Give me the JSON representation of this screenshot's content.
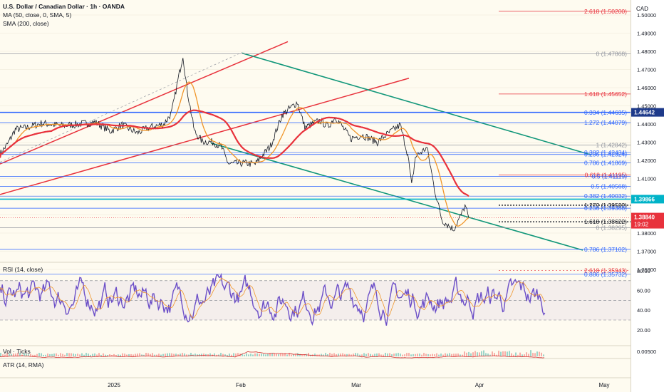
{
  "header": {
    "symbol_line": "U.S. Dollar / Canadian Dollar · 1h · OANDA",
    "ma_line": "MA (50, close, 0, SMA, 5)",
    "sma_line": "SMA (200, close)",
    "currency": "CAD"
  },
  "panes": {
    "rsi_label": "RSI (14, close)",
    "vol_label": "Vol · Ticks",
    "atr_label": "ATR (14, RMA)"
  },
  "colors": {
    "background": "#fefbf0",
    "price": "#131722",
    "ma50": "#f0962a",
    "sma200": "#e8323c",
    "red_channel": "#e8323c",
    "teal_channel": "#12977a",
    "fib_blue": "#2962ff",
    "fib_red": "#e8323c",
    "cyan_level": "#00b3c8",
    "rsi_line": "#6c4fc8",
    "rsi_ma": "#f0962a",
    "atr_line": "#d32f2f"
  },
  "chart_data": {
    "type": "line",
    "price_axis_ticks": [
      "1.50000",
      "1.49000",
      "1.48000",
      "1.47000",
      "1.46000",
      "1.45000",
      "1.44000",
      "1.43000",
      "1.42000",
      "1.41000",
      "1.40000",
      "1.39000",
      "1.38000",
      "1.37000",
      "1.36000"
    ],
    "rsi_axis_ticks": [
      "80.00",
      "60.00",
      "40.00",
      "20.00"
    ],
    "atr_axis_ticks": [
      "0.00500"
    ],
    "time_labels": [
      "2025",
      "Feb",
      "Mar",
      "Apr",
      "May"
    ],
    "fib_levels": [
      {
        "label": "2.618 (1.50200)",
        "value": 1.502,
        "color": "red"
      },
      {
        "label": "0 (1.47868)",
        "value": 1.47868,
        "color": "gray"
      },
      {
        "label": "1.618 (1.45652)",
        "value": 1.45652,
        "color": "red"
      },
      {
        "label": "0.334 (1.44635)",
        "value": 1.44635,
        "color": "blue"
      },
      {
        "label": "1.272 (1.44079)",
        "value": 1.44079,
        "color": "blue"
      },
      {
        "label": "1 (1.42842)",
        "value": 1.42842,
        "color": "gray"
      },
      {
        "label": "0.382 (1.42434)",
        "value": 1.42434,
        "color": "blue"
      },
      {
        "label": "0.236 (1.42324)",
        "value": 1.42324,
        "color": "blue"
      },
      {
        "label": "0.786 (1.41869)",
        "value": 1.41869,
        "color": "blue"
      },
      {
        "label": "0.618 (1.41195)",
        "value": 1.41195,
        "color": "red"
      },
      {
        "label": "0.5 (1.41119)",
        "value": 1.41119,
        "color": "blue"
      },
      {
        "label": "0.5 (1.40568)",
        "value": 1.40568,
        "color": "blue"
      },
      {
        "label": "0.382 (1.40032)",
        "value": 1.40032,
        "color": "blue"
      },
      {
        "label": "1.272 (1.39532)",
        "value": 1.39532,
        "color": "black"
      },
      {
        "label": "0.236 (1.39368)",
        "value": 1.39368,
        "color": "blue"
      },
      {
        "label": "1.618 (1.38622)",
        "value": 1.38622,
        "color": "black"
      },
      {
        "label": "0 (1.38295)",
        "value": 1.38295,
        "color": "gray"
      },
      {
        "label": "0.786 (1.37102)",
        "value": 1.37102,
        "color": "blue"
      },
      {
        "label": "2.618 (1.35943)",
        "value": 1.35943,
        "color": "red"
      },
      {
        "label": "0.886 (1.35732)",
        "value": 1.35732,
        "color": "blue"
      }
    ],
    "horizontal_levels": [
      {
        "value": 1.44642,
        "label": "1.44642",
        "style": "blue-thick"
      },
      {
        "value": 1.39866,
        "label": "1.39866",
        "style": "cyan-thick"
      }
    ],
    "current_price": {
      "value": 1.3884,
      "label": "1.38840",
      "countdown": "19:02"
    },
    "price_series": [
      [
        "2024-12-16",
        1.4235
      ],
      [
        "2024-12-18",
        1.429
      ],
      [
        "2024-12-20",
        1.437
      ],
      [
        "2024-12-23",
        1.438
      ],
      [
        "2024-12-27",
        1.4405
      ],
      [
        "2025-01-01",
        1.439
      ],
      [
        "2025-01-06",
        1.44
      ],
      [
        "2025-01-10",
        1.441
      ],
      [
        "2025-01-14",
        1.436
      ],
      [
        "2025-01-17",
        1.4395
      ],
      [
        "2025-01-21",
        1.435
      ],
      [
        "2025-01-24",
        1.438
      ],
      [
        "2025-01-28",
        1.44
      ],
      [
        "2025-01-30",
        1.446
      ],
      [
        "2025-02-02",
        1.478
      ],
      [
        "2025-02-03",
        1.46
      ],
      [
        "2025-02-05",
        1.436
      ],
      [
        "2025-02-07",
        1.4305
      ],
      [
        "2025-02-10",
        1.43
      ],
      [
        "2025-02-12",
        1.4275
      ],
      [
        "2025-02-14",
        1.418
      ],
      [
        "2025-02-18",
        1.4185
      ],
      [
        "2025-02-21",
        1.418
      ],
      [
        "2025-02-25",
        1.428
      ],
      [
        "2025-02-28",
        1.445
      ],
      [
        "2025-03-04",
        1.452
      ],
      [
        "2025-03-06",
        1.438
      ],
      [
        "2025-03-10",
        1.442
      ],
      [
        "2025-03-12",
        1.4385
      ],
      [
        "2025-03-14",
        1.444
      ],
      [
        "2025-03-18",
        1.432
      ],
      [
        "2025-03-21",
        1.434
      ],
      [
        "2025-03-25",
        1.43
      ],
      [
        "2025-03-27",
        1.4335
      ],
      [
        "2025-03-31",
        1.4395
      ],
      [
        "2025-04-02",
        1.423
      ],
      [
        "2025-04-03",
        1.406
      ],
      [
        "2025-04-04",
        1.422
      ],
      [
        "2025-04-07",
        1.427
      ],
      [
        "2025-04-08",
        1.416
      ],
      [
        "2025-04-09",
        1.404
      ],
      [
        "2025-04-11",
        1.387
      ],
      [
        "2025-04-14",
        1.382
      ],
      [
        "2025-04-16",
        1.39
      ],
      [
        "2025-04-17",
        1.395
      ],
      [
        "2025-04-18",
        1.3884
      ]
    ],
    "rsi_levels": {
      "upper": 70,
      "mid": 50,
      "lower": 30
    }
  }
}
